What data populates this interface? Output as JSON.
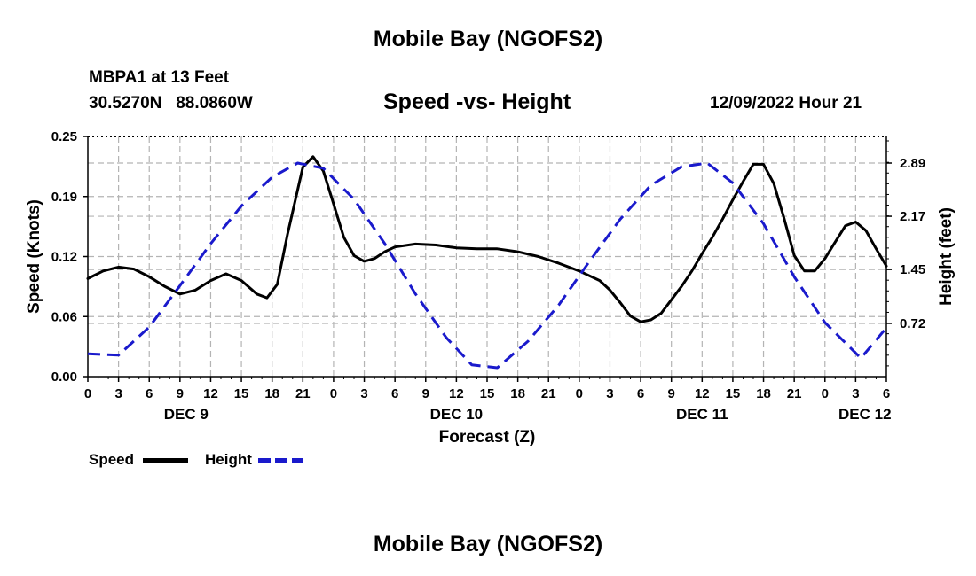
{
  "header": {
    "title": "Mobile Bay (NGOFS2)",
    "station": "MBPA1 at 13 Feet",
    "coords": "30.5270N   88.0860W",
    "subtitle": "Speed -vs- Height",
    "datetime": "12/09/2022 Hour 21"
  },
  "footer": {
    "title": "Mobile Bay (NGOFS2)"
  },
  "chart_data": {
    "type": "line",
    "title": "Speed -vs- Height",
    "xlabel": "Forecast (Z)",
    "ylabel": "Speed (Knots)",
    "y2label": "Height (feet)",
    "xlim": [
      0,
      78
    ],
    "ylim": [
      0,
      0.25
    ],
    "y2lim": [
      0,
      3.25
    ],
    "yticks": [
      "0.00",
      "0.06",
      "0.12",
      "0.19",
      "0.25"
    ],
    "ytick_values": [
      0,
      0.0625,
      0.125,
      0.1875,
      0.25
    ],
    "y2ticks": [
      "0.72",
      "1.45",
      "2.17",
      "2.89"
    ],
    "y2tick_values": [
      0.72,
      1.45,
      2.17,
      2.89
    ],
    "xticks": [
      "0",
      "3",
      "6",
      "9",
      "12",
      "15",
      "18",
      "21",
      "0",
      "3",
      "6",
      "9",
      "12",
      "15",
      "18",
      "21",
      "0",
      "3",
      "6",
      "9",
      "12",
      "15",
      "18",
      "21",
      "0",
      "3",
      "6"
    ],
    "day_labels": [
      {
        "text": "DEC 9",
        "x": 9.6
      },
      {
        "text": "DEC 10",
        "x": 36
      },
      {
        "text": "DEC 11",
        "x": 60
      },
      {
        "text": "DEC 12",
        "x": 75.9
      }
    ],
    "grid": true,
    "legend": "bottom-left",
    "series": [
      {
        "name": "Speed",
        "axis": "left",
        "color": "#000000",
        "style": "solid",
        "x": [
          0,
          1.5,
          3,
          4.5,
          6,
          7.5,
          9,
          10.5,
          12,
          13.5,
          15,
          16.5,
          17.5,
          18.5,
          19.5,
          21,
          22,
          23,
          24,
          25,
          26,
          27,
          28,
          29,
          30,
          32,
          34,
          36,
          38,
          40,
          42,
          44,
          46,
          48,
          50,
          51,
          52,
          53,
          54,
          55,
          56,
          57,
          58,
          59,
          60,
          61,
          62,
          63,
          64,
          65,
          66,
          67,
          68,
          69,
          70,
          71,
          72,
          73,
          74,
          75,
          76,
          77,
          78
        ],
        "values": [
          0.102,
          0.11,
          0.114,
          0.112,
          0.104,
          0.094,
          0.086,
          0.09,
          0.1,
          0.107,
          0.1,
          0.086,
          0.082,
          0.096,
          0.148,
          0.218,
          0.229,
          0.214,
          0.18,
          0.145,
          0.126,
          0.12,
          0.123,
          0.13,
          0.135,
          0.138,
          0.137,
          0.134,
          0.133,
          0.133,
          0.13,
          0.125,
          0.118,
          0.11,
          0.1,
          0.09,
          0.077,
          0.063,
          0.057,
          0.059,
          0.066,
          0.08,
          0.094,
          0.11,
          0.128,
          0.145,
          0.164,
          0.184,
          0.203,
          0.221,
          0.221,
          0.201,
          0.165,
          0.126,
          0.11,
          0.11,
          0.123,
          0.14,
          0.157,
          0.161,
          0.152,
          0.133,
          0.115
        ]
      },
      {
        "name": "Height",
        "axis": "right",
        "color": "#1a1acc",
        "style": "dashed",
        "x": [
          0,
          3,
          6,
          9,
          12,
          15,
          18,
          20.5,
          23,
          26,
          29,
          32,
          35,
          37.5,
          40,
          43,
          46,
          49,
          52,
          55,
          58,
          60.5,
          63,
          66,
          69,
          72,
          75.5,
          78
        ],
        "values": [
          0.31,
          0.29,
          0.67,
          1.23,
          1.8,
          2.31,
          2.7,
          2.89,
          2.82,
          2.4,
          1.8,
          1.12,
          0.53,
          0.16,
          0.12,
          0.48,
          0.97,
          1.56,
          2.13,
          2.59,
          2.84,
          2.89,
          2.62,
          2.07,
          1.35,
          0.73,
          0.25,
          0.66
        ]
      }
    ]
  },
  "legend": {
    "speed_label": "Speed",
    "height_label": "Height",
    "speed_color": "#000000",
    "height_color": "#1a1acc"
  }
}
